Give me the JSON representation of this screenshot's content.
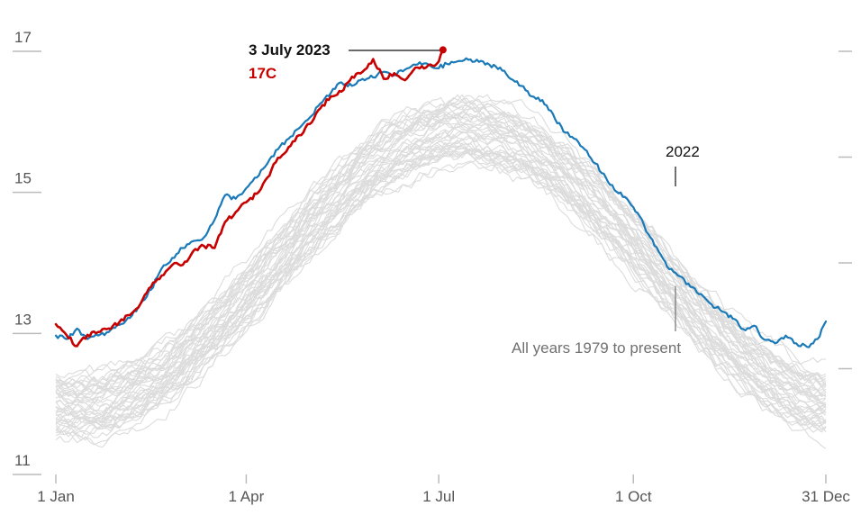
{
  "chart_data": {
    "type": "line",
    "ylim": [
      11,
      17
    ],
    "y_ticks": [
      "17",
      "15",
      "13",
      "11"
    ],
    "x_ticks": [
      "1 Jan",
      "1 Apr",
      "1 Jul",
      "1 Oct",
      "31 Dec"
    ],
    "x_tick_days": [
      0,
      90,
      181,
      273,
      364
    ],
    "grid": false,
    "annotations": {
      "record_date": "3 July 2023",
      "record_value": "17C",
      "label_2022": "2022",
      "label_all_years": "All years 1979 to present"
    },
    "colors": {
      "series_2023": "#c70000",
      "series_2022": "#1a7ab8",
      "historical": "#dcdcdc",
      "axis": "#bbbbbb",
      "text": "#555555"
    },
    "series": [
      {
        "key": "2023",
        "color": "#c70000",
        "days": [
          0,
          5,
          10,
          15,
          20,
          25,
          30,
          35,
          40,
          45,
          50,
          55,
          60,
          65,
          70,
          75,
          80,
          85,
          90,
          95,
          100,
          105,
          110,
          115,
          120,
          125,
          130,
          135,
          140,
          145,
          150,
          155,
          160,
          165,
          170,
          175,
          180,
          183
        ],
        "values": [
          13.13,
          12.98,
          12.82,
          12.98,
          13.02,
          13.07,
          13.16,
          13.26,
          13.42,
          13.66,
          13.82,
          13.97,
          13.97,
          14.17,
          14.24,
          14.21,
          14.58,
          14.72,
          14.86,
          14.98,
          15.21,
          15.49,
          15.64,
          15.81,
          15.97,
          16.19,
          16.36,
          16.43,
          16.64,
          16.71,
          16.89,
          16.61,
          16.69,
          16.59,
          16.77,
          16.77,
          16.82,
          17.02
        ]
      },
      {
        "key": "2022",
        "color": "#1a7ab8",
        "days": [
          0,
          5,
          10,
          15,
          20,
          25,
          30,
          35,
          40,
          45,
          50,
          55,
          60,
          65,
          70,
          75,
          80,
          85,
          90,
          95,
          100,
          105,
          110,
          115,
          120,
          125,
          130,
          135,
          140,
          145,
          150,
          155,
          160,
          165,
          170,
          175,
          180,
          185,
          190,
          195,
          200,
          205,
          210,
          215,
          220,
          225,
          230,
          235,
          240,
          245,
          250,
          255,
          260,
          265,
          270,
          275,
          280,
          285,
          290,
          295,
          300,
          305,
          310,
          315,
          320,
          325,
          330,
          335,
          340,
          345,
          350,
          355,
          360,
          364
        ],
        "values": [
          12.97,
          12.92,
          13.07,
          12.92,
          12.97,
          13.02,
          13.12,
          13.22,
          13.42,
          13.62,
          13.92,
          14.07,
          14.21,
          14.31,
          14.36,
          14.61,
          14.96,
          14.91,
          15.06,
          15.21,
          15.41,
          15.61,
          15.76,
          15.91,
          16.06,
          16.26,
          16.41,
          16.56,
          16.51,
          16.61,
          16.63,
          16.71,
          16.66,
          16.74,
          16.81,
          16.83,
          16.76,
          16.82,
          16.86,
          16.88,
          16.85,
          16.81,
          16.77,
          16.61,
          16.51,
          16.36,
          16.31,
          16.11,
          15.86,
          15.76,
          15.61,
          15.41,
          15.21,
          15.01,
          14.91,
          14.71,
          14.41,
          14.16,
          13.91,
          13.81,
          13.66,
          13.56,
          13.41,
          13.31,
          13.21,
          13.06,
          13.11,
          12.91,
          12.86,
          12.97,
          12.86,
          12.81,
          12.92,
          13.17
        ]
      }
    ]
  }
}
